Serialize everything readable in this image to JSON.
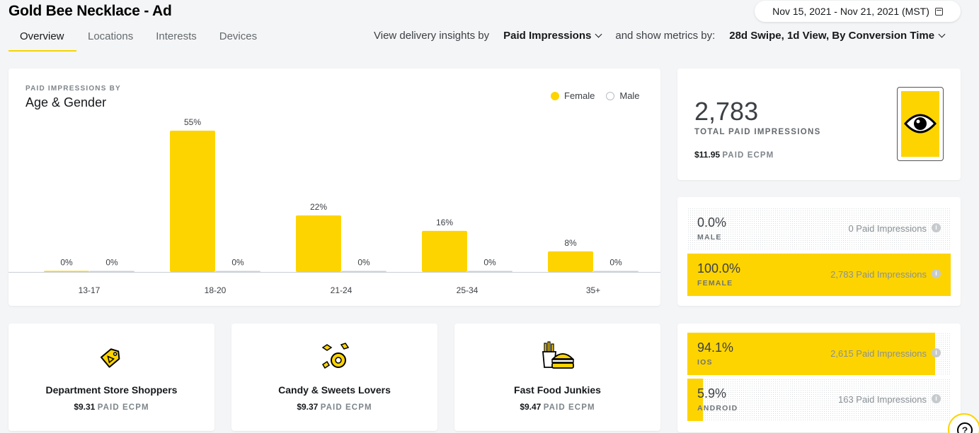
{
  "header": {
    "title": "Gold Bee Necklace - Ad",
    "date_range": "Nov 15, 2021 - Nov 21, 2021 (MST)"
  },
  "tabs": [
    {
      "label": "Overview",
      "active": true
    },
    {
      "label": "Locations",
      "active": false
    },
    {
      "label": "Interests",
      "active": false
    },
    {
      "label": "Devices",
      "active": false
    }
  ],
  "filters": {
    "insights_prefix": "View delivery insights by",
    "insights_value": "Paid Impressions",
    "metrics_prefix": "and show metrics by:",
    "metrics_value": "28d Swipe, 1d View, By Conversion Time"
  },
  "chart": {
    "kicker": "PAID IMPRESSIONS BY",
    "title": "Age & Gender",
    "legend_female": "Female",
    "legend_male": "Male"
  },
  "chart_data": {
    "type": "bar",
    "categories": [
      "13-17",
      "18-20",
      "21-24",
      "25-34",
      "35+"
    ],
    "series": [
      {
        "name": "Female",
        "values": [
          0,
          55,
          22,
          16,
          8
        ],
        "labels": [
          "0%",
          "55%",
          "22%",
          "16%",
          "8%"
        ],
        "color": "#fdd400"
      },
      {
        "name": "Male",
        "values": [
          0,
          0,
          0,
          0,
          0
        ],
        "labels": [
          "0%",
          "0%",
          "0%",
          "0%",
          "0%"
        ],
        "color": "#c9d3dd"
      }
    ],
    "ylim": [
      0,
      55
    ],
    "legend_position": "top-right",
    "grid": false
  },
  "total": {
    "value": "2,783",
    "label": "TOTAL PAID IMPRESSIONS",
    "ecpm_value": "$11.95",
    "ecpm_label": "PAID ECPM",
    "icon": "eye-icon"
  },
  "gender": [
    {
      "pct": "0.0%",
      "label": "MALE",
      "impressions": "0 Paid Impressions",
      "fraction": 0.0
    },
    {
      "pct": "100.0%",
      "label": "FEMALE",
      "impressions": "2,783 Paid Impressions",
      "fraction": 1.0
    }
  ],
  "devices": [
    {
      "pct": "94.1%",
      "label": "IOS",
      "impressions": "2,615 Paid Impressions",
      "fraction": 0.941
    },
    {
      "pct": "5.9%",
      "label": "ANDROID",
      "impressions": "163 Paid Impressions",
      "fraction": 0.059
    }
  ],
  "interests": [
    {
      "name": "Department Store Shoppers",
      "ecpm_value": "$9.31",
      "ecpm_label": "PAID ECPM",
      "icon": "price-tag-icon"
    },
    {
      "name": "Candy & Sweets Lovers",
      "ecpm_value": "$9.37",
      "ecpm_label": "PAID ECPM",
      "icon": "candy-icon"
    },
    {
      "name": "Fast Food Junkies",
      "ecpm_value": "$9.47",
      "ecpm_label": "PAID ECPM",
      "icon": "burger-fries-icon"
    }
  ],
  "colors": {
    "accent": "#fdd400",
    "male": "#c9d3dd"
  },
  "help": {
    "glyph": "?"
  }
}
